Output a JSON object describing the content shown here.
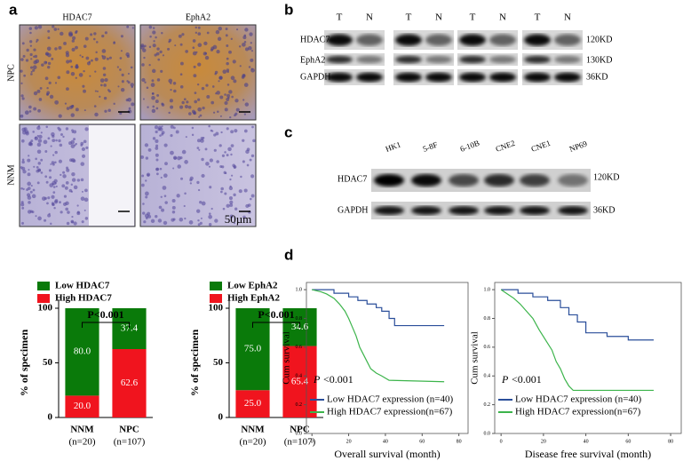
{
  "panel_a": {
    "label": "a",
    "columns": [
      "HDAC7",
      "EphA2"
    ],
    "rows": [
      "NPC",
      "NNM"
    ],
    "scale": "50µm"
  },
  "panel_b": {
    "label": "b",
    "lanes": [
      "T",
      "N",
      "T",
      "N",
      "T",
      "N",
      "T",
      "N"
    ],
    "rows": [
      "HDAC7",
      "EphA2",
      "GAPDH"
    ],
    "sizes": [
      "120KD",
      "130KD",
      "36KD"
    ]
  },
  "panel_c": {
    "label": "c",
    "lanes": [
      "HK1",
      "5-8F",
      "6-10B",
      "CNE2",
      "CNE1",
      "NP69"
    ],
    "rows": [
      "HDAC7",
      "GAPDH"
    ],
    "sizes": [
      "120KD",
      "36KD"
    ]
  },
  "panel_d": {
    "label": "d"
  },
  "chart_data": [
    {
      "type": "bar",
      "stacked": true,
      "categories": [
        "NNM",
        "NPC"
      ],
      "category_counts": [
        "(n=20)",
        "(n=107)"
      ],
      "ylabel": "% of specimen",
      "ylim": [
        0,
        100
      ],
      "yticks": [
        0,
        50,
        100
      ],
      "annotation": "P<0.001",
      "series": [
        {
          "name": "Low HDAC7",
          "color": "#0a7a0a",
          "values": [
            80.0,
            37.4
          ],
          "value_labels": [
            "80.0",
            "37.4"
          ]
        },
        {
          "name": "High HDAC7",
          "color": "#f0141e",
          "values": [
            20.0,
            62.6
          ],
          "value_labels": [
            "20.0",
            "62.6"
          ]
        }
      ]
    },
    {
      "type": "bar",
      "stacked": true,
      "categories": [
        "NNM",
        "NPC"
      ],
      "category_counts": [
        "(n=20)",
        "(n=107)"
      ],
      "ylabel": "% of specimen",
      "ylim": [
        0,
        100
      ],
      "yticks": [
        0,
        50,
        100
      ],
      "annotation": "P<0.001",
      "series": [
        {
          "name": "Low EphA2",
          "color": "#0a7a0a",
          "values": [
            75.0,
            34.6
          ],
          "value_labels": [
            "75.0",
            "34.6"
          ]
        },
        {
          "name": "High EphA2",
          "color": "#f0141e",
          "values": [
            25.0,
            65.4
          ],
          "value_labels": [
            "25.0",
            "65.4"
          ]
        }
      ]
    },
    {
      "type": "line",
      "ylabel": "Cum survival",
      "xlabel": "Overall survival (month)",
      "annotation_italic": "P",
      "annotation": "<0.001",
      "xlim": [
        -3,
        85
      ],
      "xticks": [
        0,
        20,
        40,
        60,
        80
      ],
      "ylim": [
        0,
        1.05
      ],
      "yticks": [
        {
          "value": 0,
          "label": "0.0"
        },
        0.2,
        0.4,
        0.6,
        0.8,
        {
          "value": 1,
          "label": "1.0"
        }
      ],
      "series": [
        {
          "name": "Low HDAC7 expression (n=40)",
          "color": "#2a4e9a",
          "x": [
            0,
            12,
            12,
            20,
            20,
            25,
            25,
            30,
            30,
            35,
            35,
            38,
            38,
            42,
            42,
            45,
            45,
            72
          ],
          "values": [
            1,
            1,
            0.975,
            0.975,
            0.95,
            0.95,
            0.925,
            0.925,
            0.9,
            0.9,
            0.875,
            0.875,
            0.85,
            0.85,
            0.8,
            0.8,
            0.75,
            0.75
          ]
        },
        {
          "name": "High HDAC7 expression(n=67)",
          "color": "#3cb44b",
          "x": [
            0,
            5,
            8,
            12,
            15,
            18,
            20,
            22,
            24,
            26,
            28,
            30,
            32,
            35,
            38,
            42,
            72
          ],
          "values": [
            1,
            0.985,
            0.97,
            0.94,
            0.9,
            0.85,
            0.8,
            0.74,
            0.68,
            0.6,
            0.55,
            0.5,
            0.45,
            0.42,
            0.4,
            0.37,
            0.36
          ]
        }
      ]
    },
    {
      "type": "line",
      "ylabel": "Cum survival",
      "xlabel": "Disease free survival (month)",
      "annotation_italic": "P",
      "annotation": "<0.001",
      "xlim": [
        -3,
        85
      ],
      "xticks": [
        0,
        20,
        40,
        60,
        80
      ],
      "ylim": [
        0,
        1.05
      ],
      "yticks": [
        {
          "value": 0,
          "label": "0.0"
        },
        0.2,
        0.4,
        0.6,
        0.8,
        {
          "value": 1,
          "label": "1.0"
        }
      ],
      "series": [
        {
          "name": "Low HDAC7 expression (n=40)",
          "color": "#2a4e9a",
          "x": [
            0,
            8,
            8,
            15,
            15,
            22,
            22,
            28,
            28,
            32,
            32,
            36,
            36,
            40,
            40,
            50,
            50,
            60,
            60,
            72
          ],
          "values": [
            1,
            1,
            0.975,
            0.975,
            0.95,
            0.95,
            0.925,
            0.925,
            0.875,
            0.875,
            0.825,
            0.825,
            0.775,
            0.775,
            0.7,
            0.7,
            0.675,
            0.675,
            0.65,
            0.65
          ]
        },
        {
          "name": "High HDAC7 expression(n=67)",
          "color": "#3cb44b",
          "x": [
            0,
            3,
            6,
            9,
            12,
            15,
            18,
            21,
            24,
            26,
            28,
            30,
            32,
            34,
            72
          ],
          "values": [
            1,
            0.97,
            0.94,
            0.9,
            0.85,
            0.8,
            0.72,
            0.65,
            0.58,
            0.5,
            0.45,
            0.38,
            0.33,
            0.3,
            0.3
          ]
        }
      ]
    }
  ]
}
